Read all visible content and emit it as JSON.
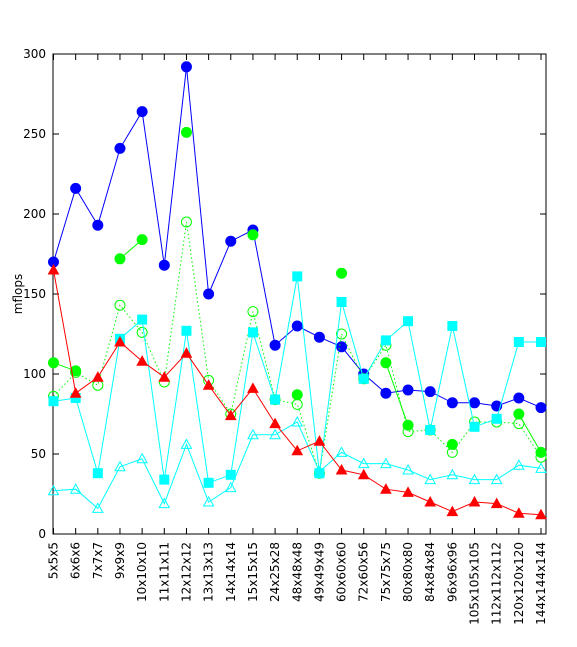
{
  "chart_data": {
    "type": "line",
    "title": "",
    "xlabel": "",
    "ylabel": "mflops",
    "ylim": [
      0,
      300
    ],
    "yticks": [
      0,
      50,
      100,
      150,
      200,
      250,
      300
    ],
    "grid": false,
    "legend": "none",
    "categories": [
      "5x5x5",
      "6x6x6",
      "7x7x7",
      "9x9x9",
      "10x10x10",
      "11x11x11",
      "12x12x12",
      "13x13x13",
      "14x14x14",
      "15x15x15",
      "24x25x28",
      "48x48x48",
      "49x49x49",
      "60x60x60",
      "72x60x56",
      "75x75x75",
      "80x80x80",
      "84x84x84",
      "96x96x96",
      "105x105x105",
      "112x112x112",
      "120x120x120",
      "144x144x144"
    ],
    "series": [
      {
        "color": "#0000ff",
        "marker": "circle-filled",
        "line": "solid",
        "values": [
          170,
          216,
          193,
          241,
          264,
          168,
          292,
          150,
          183,
          190,
          118,
          130,
          123,
          117,
          100,
          88,
          90,
          89,
          82,
          82,
          80,
          85,
          79
        ]
      },
      {
        "color": "#00ff00",
        "marker": "circle-filled",
        "line": "solid",
        "values": [
          107,
          102,
          null,
          172,
          184,
          null,
          251,
          null,
          null,
          187,
          null,
          87,
          null,
          163,
          null,
          107,
          68,
          null,
          56,
          null,
          null,
          75,
          51
        ]
      },
      {
        "color": "#00ff00",
        "marker": "circle-open",
        "line": "dotted",
        "values": [
          86,
          101,
          93,
          143,
          126,
          95,
          195,
          96,
          75,
          139,
          84,
          81,
          38,
          125,
          97,
          118,
          64,
          65,
          51,
          70,
          70,
          69,
          48
        ]
      },
      {
        "color": "#00ffff",
        "marker": "square-filled",
        "line": "solid",
        "values": [
          83,
          85,
          38,
          122,
          134,
          34,
          127,
          32,
          37,
          126,
          84,
          161,
          38,
          145,
          97,
          121,
          133,
          65,
          130,
          67,
          72,
          120,
          120
        ]
      },
      {
        "color": "#00ffff",
        "marker": "triangle-open",
        "line": "solid",
        "values": [
          27,
          28,
          16,
          42,
          47,
          19,
          56,
          20,
          29,
          62,
          62,
          70,
          39,
          51,
          44,
          44,
          40,
          34,
          37,
          34,
          34,
          43,
          41
        ]
      },
      {
        "color": "#ff0000",
        "marker": "triangle-filled",
        "line": "solid",
        "values": [
          165,
          88,
          98,
          120,
          108,
          98,
          113,
          93,
          74,
          91,
          69,
          52,
          58,
          40,
          37,
          28,
          26,
          20,
          14,
          20,
          19,
          13,
          12
        ]
      }
    ]
  }
}
